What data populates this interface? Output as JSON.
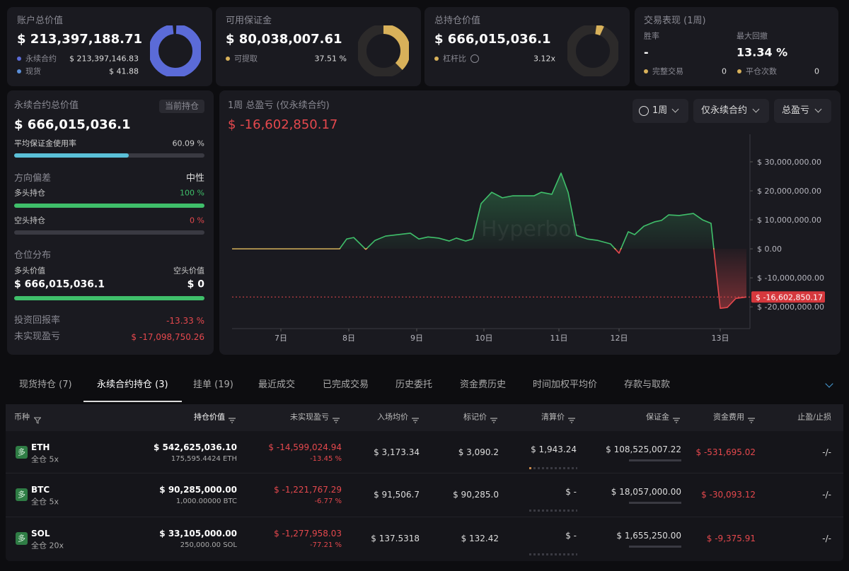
{
  "summary_cards": [
    {
      "title": "账户总价值",
      "value": "$ 213,397,188.71",
      "rows": [
        {
          "label": "永续合约",
          "value": "$ 213,397,146.83"
        },
        {
          "label": "现货",
          "value": "$ 41.88"
        }
      ]
    },
    {
      "title": "可用保证金",
      "value": "$ 80,038,007.61",
      "rows": [
        {
          "label": "可提取",
          "value": "37.51 %"
        }
      ]
    },
    {
      "title": "总持仓价值",
      "value": "$ 666,015,036.1",
      "rows": [
        {
          "label": "杠杆比",
          "value": "3.12x"
        }
      ]
    }
  ],
  "performance": {
    "title": "交易表现 (1周)",
    "win_rate_label": "胜率",
    "win_rate": "-",
    "max_drawdown_label": "最大回撤",
    "max_drawdown": "13.34 %",
    "completed_label": "完整交易",
    "completed": "0",
    "closes_label": "平仓次数",
    "closes": "0"
  },
  "perp_panel": {
    "title": "永续合约总价值",
    "badge": "当前持仓",
    "value": "$ 666,015,036.1",
    "margin_usage_label": "平均保证金使用率",
    "margin_usage": "60.09 %",
    "bias_label": "方向偏差",
    "bias": "中性",
    "long_label": "多头持仓",
    "long": "100 %",
    "short_label": "空头持仓",
    "short": "0 %",
    "distribution_label": "仓位分布",
    "long_value_label": "多头价值",
    "short_value_label": "空头价值",
    "long_value": "$ 666,015,036.1",
    "short_value": "$ 0",
    "roi_label": "投资回报率",
    "roi": "-13.33 %",
    "upnl_label": "未实现盈亏",
    "upnl": "$ -17,098,750.26"
  },
  "pnl_chart": {
    "type": "line",
    "title": "1周 总盈亏 (仅永续合约)",
    "total": "$ -16,602,850.17",
    "controls": [
      "1周",
      "仅永续合约",
      "总盈亏"
    ],
    "watermark": "Hyperbot",
    "x": [
      0,
      1.52,
      1.62,
      1.72,
      1.89,
      2.02,
      2.17,
      2.52,
      2.64,
      2.77,
      2.92,
      3.07,
      3.17,
      3.3,
      3.4,
      3.52,
      3.67,
      3.82,
      3.97,
      4.27,
      4.37,
      4.52,
      4.65,
      4.75,
      4.87,
      5.02,
      5.17,
      5.35,
      5.47,
      5.6,
      5.69,
      5.82,
      5.97,
      6.07,
      6.17,
      6.32,
      6.52,
      6.65,
      6.77,
      6.9,
      7.0,
      7.12,
      7.27
    ],
    "values": [
      0,
      0,
      3400000,
      3900000,
      -200000,
      2900000,
      4400000,
      5400000,
      3400000,
      4100000,
      3700000,
      2700000,
      3700000,
      2700000,
      3400000,
      15600000,
      19500000,
      17600000,
      18300000,
      18300000,
      19500000,
      18800000,
      26100000,
      19500000,
      4600000,
      3400000,
      2900000,
      1700000,
      -1500000,
      5900000,
      4900000,
      7800000,
      9300000,
      9800000,
      11700000,
      11500000,
      12200000,
      10000000,
      8800000,
      -20500000,
      -20200000,
      -17100000,
      -16602850.17
    ],
    "xlim": [
      0,
      7.27
    ],
    "ylim": [
      -27500000,
      39500000
    ],
    "xticks": [
      {
        "value": 0.69,
        "label": "7日"
      },
      {
        "value": 1.65,
        "label": "8日"
      },
      {
        "value": 2.61,
        "label": "9日"
      },
      {
        "value": 3.56,
        "label": "10日"
      },
      {
        "value": 4.62,
        "label": "11日"
      },
      {
        "value": 5.47,
        "label": "12日"
      },
      {
        "value": 6.9,
        "label": "13日"
      }
    ],
    "yticks": [
      {
        "value": 30000000,
        "label": "$ 30,000,000.00"
      },
      {
        "value": 20000000,
        "label": "$ 20,000,000.00"
      },
      {
        "value": 10000000,
        "label": "$ 10,000,000.00"
      },
      {
        "value": 0,
        "label": "$ 0.00"
      },
      {
        "value": -10000000,
        "label": "$ -10,000,000.00"
      },
      {
        "value": -20000000,
        "label": "$ -20,000,000.00"
      }
    ]
  },
  "tabs": {
    "items": [
      "现货持仓 (7)",
      "永续合约持仓 (3)",
      "挂单 (19)",
      "最近成交",
      "已完成交易",
      "历史委托",
      "资金费历史",
      "时间加权平均价",
      "存款与取款"
    ],
    "active": 1
  },
  "table": {
    "headers": [
      "币种",
      "持仓价值",
      "未实现盈亏",
      "入场均价",
      "标记价",
      "清算价",
      "保证金",
      "资金费用",
      "止盈/止损"
    ],
    "rows": [
      {
        "side": "多",
        "coin": "ETH",
        "mode": "全仓 5x",
        "position_value": "$ 542,625,036.10",
        "size": "175,595.4424 ETH",
        "pnl": "$ -14,599,024.94",
        "pnl_pct": "-13.45 %",
        "entry": "$ 3,173.34",
        "mark": "$ 3,090.2",
        "liq": "$ 1,943.24",
        "margin": "$ 108,525,007.22",
        "funding": "$ -531,695.02",
        "tpsl": "-/-"
      },
      {
        "side": "多",
        "coin": "BTC",
        "mode": "全仓 5x",
        "position_value": "$ 90,285,000.00",
        "size": "1,000.00000 BTC",
        "pnl": "$ -1,221,767.29",
        "pnl_pct": "-6.77 %",
        "entry": "$ 91,506.7",
        "mark": "$ 90,285.0",
        "liq": "$ -",
        "margin": "$ 18,057,000.00",
        "funding": "$ -30,093.12",
        "tpsl": "-/-"
      },
      {
        "side": "多",
        "coin": "SOL",
        "mode": "全仓 20x",
        "position_value": "$ 33,105,000.00",
        "size": "250,000.00 SOL",
        "pnl": "$ -1,277,958.03",
        "pnl_pct": "-77.21 %",
        "entry": "$ 137.5318",
        "mark": "$ 132.42",
        "liq": "$ -",
        "margin": "$ 1,655,250.00",
        "funding": "$ -9,375.91",
        "tpsl": "-/-"
      }
    ]
  }
}
